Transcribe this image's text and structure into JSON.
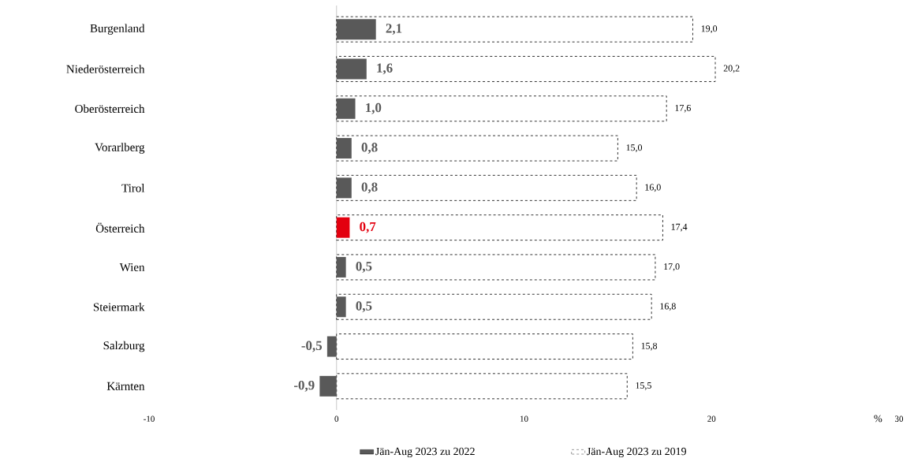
{
  "chart_data": {
    "type": "bar",
    "orientation": "horizontal",
    "xlabel": "%",
    "categories": [
      "Burgenland",
      "Niederösterreich",
      "Oberösterreich",
      "Vorarlberg",
      "Tirol",
      "Österreich",
      "Wien",
      "Steiermark",
      "Salzburg",
      "Kärnten"
    ],
    "series": [
      {
        "name": "Jän-Aug 2023 zu 2019",
        "color": "#ffffff",
        "line_style": "dashed",
        "values": [
          19.0,
          20.2,
          17.6,
          15.0,
          16.0,
          17.4,
          17.0,
          16.8,
          15.8,
          15.5
        ],
        "value_labels": [
          "19,0",
          "20,2",
          "17,6",
          "15,0",
          "16,0",
          "17,4",
          "17,0",
          "16,8",
          "15,8",
          "15,5"
        ]
      },
      {
        "name": "Jän-Aug 2023 zu 2022",
        "color": "#595959",
        "colors": [
          "#595959",
          "#595959",
          "#595959",
          "#595959",
          "#595959",
          "#e3000f",
          "#595959",
          "#595959",
          "#595959",
          "#595959"
        ],
        "values": [
          2.1,
          1.6,
          1.0,
          0.8,
          0.8,
          0.7,
          0.5,
          0.5,
          -0.5,
          -0.9
        ],
        "value_labels": [
          "2,1",
          "1,6",
          "1,0",
          "0,8",
          "0,8",
          "0,7",
          "0,5",
          "0,5",
          "-0,5",
          "-0,9"
        ]
      }
    ],
    "xlim": [
      -10,
      30
    ],
    "xticks": [
      -10,
      0,
      10,
      20,
      30
    ],
    "legend": "bottom"
  }
}
